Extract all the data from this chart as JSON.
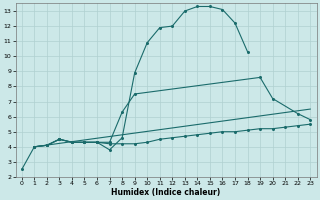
{
  "xlabel": "Humidex (Indice chaleur)",
  "background_color": "#cce8e8",
  "grid_color": "#b0d0d0",
  "line_color": "#1a6b6b",
  "xlim": [
    -0.5,
    23.5
  ],
  "ylim": [
    2,
    13.5
  ],
  "xticks": [
    0,
    1,
    2,
    3,
    4,
    5,
    6,
    7,
    8,
    9,
    10,
    11,
    12,
    13,
    14,
    15,
    16,
    17,
    18,
    19,
    20,
    21,
    22,
    23
  ],
  "yticks": [
    2,
    3,
    4,
    5,
    6,
    7,
    8,
    9,
    10,
    11,
    12,
    13
  ],
  "line1_x": [
    0,
    1,
    2,
    3,
    4,
    5,
    6,
    7,
    8,
    9,
    10,
    11,
    12,
    13,
    14,
    15,
    16,
    17,
    18
  ],
  "line1_y": [
    2.5,
    4.0,
    4.1,
    4.5,
    4.3,
    4.3,
    4.3,
    3.8,
    4.6,
    8.9,
    10.9,
    11.9,
    12.0,
    13.0,
    13.3,
    13.3,
    13.1,
    12.2,
    10.3
  ],
  "line2_x": [
    1,
    2,
    3,
    4,
    5,
    6,
    7,
    8,
    9,
    19,
    20,
    22,
    23
  ],
  "line2_y": [
    4.0,
    4.1,
    4.5,
    4.3,
    4.3,
    4.3,
    4.3,
    6.3,
    7.5,
    8.6,
    7.2,
    6.2,
    5.8
  ],
  "line3_x": [
    1,
    23
  ],
  "line3_y": [
    4.0,
    6.5
  ],
  "line4_x": [
    1,
    2,
    3,
    4,
    5,
    6,
    7,
    8,
    9,
    10,
    11,
    12,
    13,
    14,
    15,
    16,
    17,
    18,
    19,
    20,
    21,
    22,
    23
  ],
  "line4_y": [
    4.0,
    4.1,
    4.5,
    4.3,
    4.3,
    4.3,
    4.2,
    4.2,
    4.2,
    4.3,
    4.5,
    4.6,
    4.7,
    4.8,
    4.9,
    5.0,
    5.0,
    5.1,
    5.2,
    5.2,
    5.3,
    5.4,
    5.5
  ]
}
